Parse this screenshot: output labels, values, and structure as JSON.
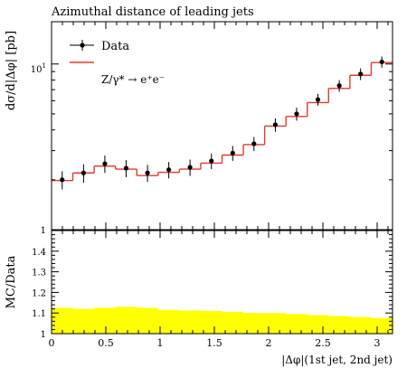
{
  "chart_data": [
    {
      "type": "line",
      "panel": "main",
      "title": "Azimuthal distance of leading jets",
      "ylabel": "dσ/d|Δφ| [pb]",
      "xlabel": "",
      "xlim": [
        0,
        3.1416
      ],
      "ylim": [
        1,
        18
      ],
      "yscale": "log",
      "x_edges": [
        0.0,
        0.1963,
        0.3927,
        0.589,
        0.7854,
        0.9817,
        1.1781,
        1.3744,
        1.5708,
        1.7671,
        1.9635,
        2.1598,
        2.3562,
        2.5525,
        2.7489,
        2.9452,
        3.1416
      ],
      "y_tick_labels": [
        "1",
        "10^1"
      ],
      "legend_position": "top-left",
      "series": [
        {
          "name": "Data",
          "kind": "points-with-errors",
          "color": "#000000",
          "x": [
            0.098,
            0.295,
            0.491,
            0.687,
            0.884,
            1.08,
            1.276,
            1.473,
            1.669,
            1.865,
            2.062,
            2.258,
            2.454,
            2.651,
            2.847,
            3.043
          ],
          "values": [
            2.0,
            2.2,
            2.5,
            2.35,
            2.2,
            2.3,
            2.38,
            2.6,
            2.9,
            3.3,
            4.3,
            5.0,
            6.1,
            7.4,
            8.7,
            10.3
          ],
          "err_up": [
            0.25,
            0.28,
            0.3,
            0.28,
            0.26,
            0.26,
            0.27,
            0.28,
            0.3,
            0.32,
            0.4,
            0.45,
            0.5,
            0.6,
            0.7,
            0.8
          ],
          "err_down": [
            0.25,
            0.28,
            0.3,
            0.28,
            0.26,
            0.26,
            0.27,
            0.28,
            0.3,
            0.32,
            0.4,
            0.45,
            0.5,
            0.6,
            0.7,
            0.8
          ]
        },
        {
          "name": "Z/γ* → e⁺e⁻",
          "kind": "step",
          "color": "#e8382c",
          "values": [
            1.98,
            2.2,
            2.42,
            2.32,
            2.12,
            2.22,
            2.32,
            2.52,
            2.82,
            3.26,
            4.22,
            4.82,
            5.85,
            7.12,
            8.55,
            10.2
          ]
        }
      ]
    },
    {
      "type": "area",
      "panel": "ratio",
      "ylabel": "MC/Data",
      "xlabel": "|Δφ|(1st jet, 2nd jet)",
      "xlim": [
        0,
        3.1416
      ],
      "ylim": [
        1.0,
        1.5
      ],
      "x_ticks": [
        0,
        0.5,
        1,
        1.5,
        2,
        2.5,
        3
      ],
      "x_tick_labels": [
        "0",
        "0.5",
        "1",
        "1.5",
        "2",
        "2.5",
        "3"
      ],
      "y_ticks": [
        1.0,
        1.1,
        1.2,
        1.3,
        1.4
      ],
      "y_tick_labels": [
        "1",
        "1.1",
        "1.2",
        "1.3",
        "1.4"
      ],
      "series": [
        {
          "kind": "band",
          "color": "#ffff00",
          "values": [
            1.125,
            1.12,
            1.125,
            1.13,
            1.125,
            1.115,
            1.112,
            1.11,
            1.105,
            1.1,
            1.1,
            1.095,
            1.09,
            1.085,
            1.08,
            1.075
          ]
        }
      ]
    }
  ]
}
